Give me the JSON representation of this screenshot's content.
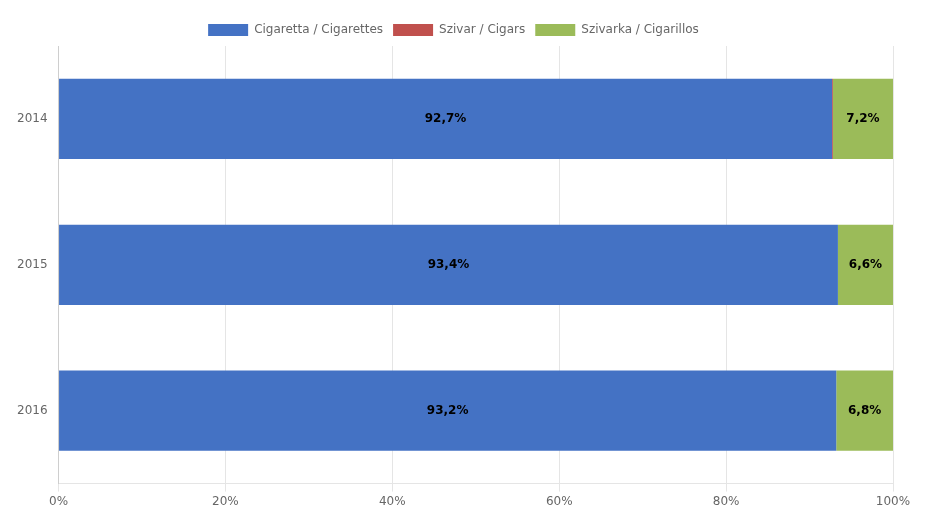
{
  "chart_data": {
    "type": "bar",
    "orientation": "horizontal",
    "stacked": true,
    "categories": [
      "2016",
      "2015",
      "2014"
    ],
    "series": [
      {
        "name": "Cigaretta / Cigarettes",
        "color": "#4472C4",
        "values": [
          93.2,
          93.4,
          92.7
        ],
        "value_labels": [
          "93,2%",
          "93,4%",
          "92,7%"
        ]
      },
      {
        "name": "Szivar / Cigars",
        "color": "#C0504D",
        "values": [
          0.0,
          0.0,
          0.1
        ]
      },
      {
        "name": "Szivarka / Cigarillos",
        "color": "#9BBB59",
        "values": [
          6.8,
          6.6,
          7.2
        ],
        "value_labels": [
          "6,8%",
          "6,6%",
          "7,2%"
        ]
      }
    ],
    "xlim": [
      0,
      100
    ],
    "xticks": [
      {
        "value": 0,
        "label": "0%"
      },
      {
        "value": 20,
        "label": "20%"
      },
      {
        "value": 40,
        "label": "40%"
      },
      {
        "value": 60,
        "label": "60%"
      },
      {
        "value": 80,
        "label": "80%"
      },
      {
        "value": 100,
        "label": "100%"
      }
    ],
    "grid": true,
    "legend": "top",
    "data_labels": true
  }
}
